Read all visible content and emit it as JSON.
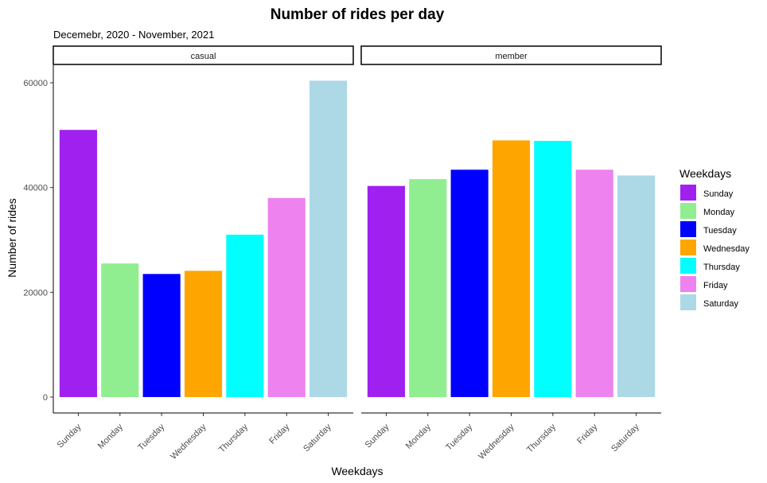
{
  "chart_data": {
    "type": "bar",
    "title": "Number of rides per day",
    "subtitle": "Decemebr, 2020 - November, 2021",
    "xlabel": "Weekdays",
    "ylabel": "Number of rides",
    "ylim": [
      0,
      63000
    ],
    "yticks": [
      0,
      20000,
      40000,
      60000
    ],
    "grid": false,
    "legend": {
      "title": "Weekdays",
      "placement": "right"
    },
    "categories": [
      "Sunday",
      "Monday",
      "Tuesday",
      "Wednesday",
      "Thursday",
      "Friday",
      "Saturday"
    ],
    "colors": [
      "#a020f0",
      "#90ee90",
      "#0000ff",
      "#ffa500",
      "#00ffff",
      "#ee82ee",
      "#add8e6"
    ],
    "panels": [
      {
        "label": "casual",
        "values": [
          51000,
          25500,
          23500,
          24100,
          31000,
          38000,
          60400
        ]
      },
      {
        "label": "member",
        "values": [
          40300,
          41600,
          43400,
          49000,
          48900,
          43400,
          42300
        ]
      }
    ]
  }
}
